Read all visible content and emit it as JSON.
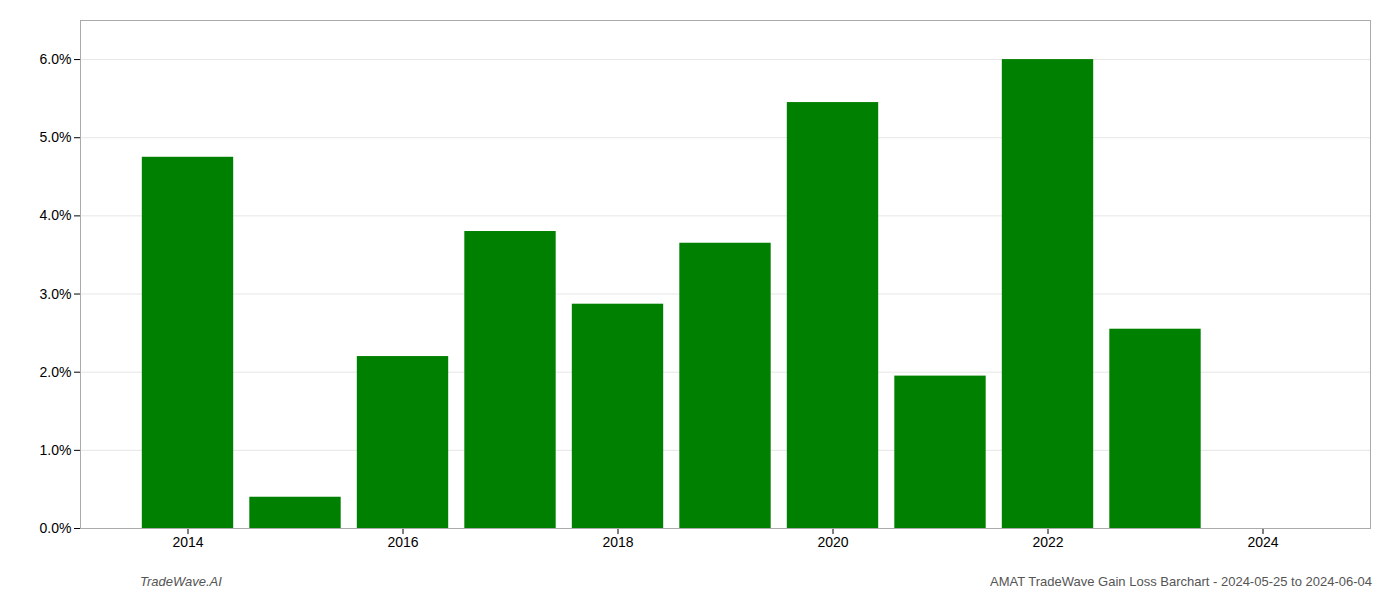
{
  "chart_data": {
    "type": "bar",
    "x": [
      2014,
      2015,
      2016,
      2017,
      2018,
      2019,
      2020,
      2021,
      2022,
      2023,
      2024
    ],
    "values": [
      0.0475,
      0.004,
      0.022,
      0.038,
      0.0287,
      0.0365,
      0.0545,
      0.0195,
      0.06,
      0.0255,
      0.0
    ],
    "color": "#008000",
    "xlim": [
      2013,
      2025
    ],
    "xticks": [
      2014,
      2016,
      2018,
      2020,
      2022,
      2024
    ],
    "ylim": [
      0.0,
      0.065
    ],
    "yticks": [
      {
        "value": 0.0,
        "label": "0.0%"
      },
      {
        "value": 0.01,
        "label": "1.0%"
      },
      {
        "value": 0.02,
        "label": "2.0%"
      },
      {
        "value": 0.03,
        "label": "3.0%"
      },
      {
        "value": 0.04,
        "label": "4.0%"
      },
      {
        "value": 0.05,
        "label": "5.0%"
      },
      {
        "value": 0.06,
        "label": "6.0%"
      }
    ],
    "grid": true,
    "annotations": [
      "TradeWave.AI",
      "AMAT TradeWave Gain Loss Barchart - 2024-05-25 to 2024-06-04"
    ]
  }
}
